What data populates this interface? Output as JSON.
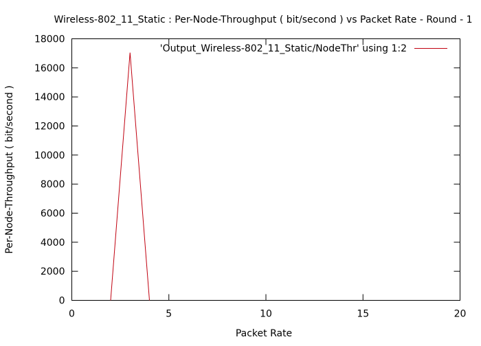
{
  "chart_data": {
    "type": "line",
    "title": "Wireless-802_11_Static : Per-Node-Throughput ( bit/second ) vs Packet Rate - Round - 1",
    "xlabel": "Packet Rate",
    "ylabel": "Per-Node-Throughput ( bit/second )",
    "xlim": [
      0,
      20
    ],
    "ylim": [
      0,
      18000
    ],
    "x_ticks": [
      0,
      5,
      10,
      15,
      20
    ],
    "y_ticks": [
      0,
      2000,
      4000,
      6000,
      8000,
      10000,
      12000,
      14000,
      16000,
      18000
    ],
    "grid": false,
    "legend_position": "top-right",
    "series": [
      {
        "name": "'Output_Wireless-802_11_Static/NodeThr' using 1:2",
        "color": "#c0000f",
        "x": [
          2,
          3,
          4
        ],
        "y": [
          0,
          17050,
          0
        ]
      }
    ]
  }
}
